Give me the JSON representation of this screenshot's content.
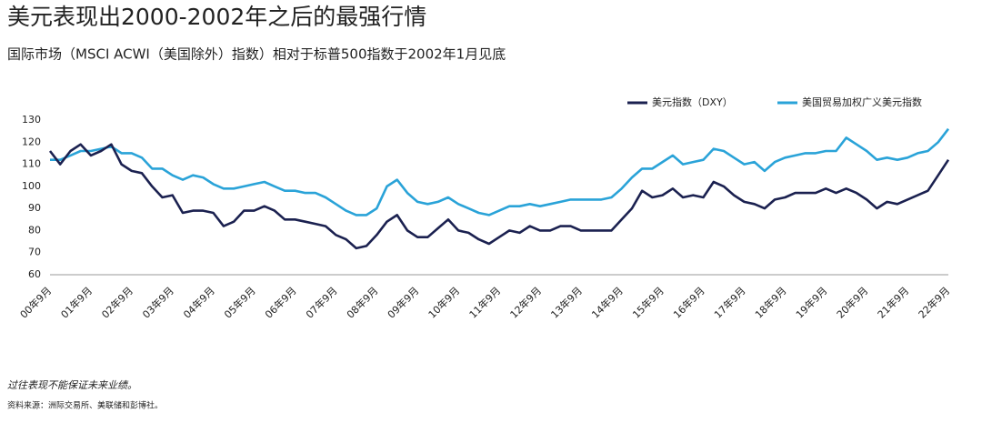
{
  "chart_data": {
    "type": "line",
    "title": "美元表现出2000-2002年之后的最强行情",
    "subtitle": "国际市场（MSCI ACWI（美国除外）指数）相对于标普500指数于2002年1月见底",
    "footnotes": [
      "过往表现不能保证未来业绩。",
      "资料来源：洲际交易所、美联储和彭博社。"
    ],
    "categories": [
      "00年9月",
      null,
      null,
      null,
      "01年9月",
      null,
      null,
      null,
      "02年9月",
      null,
      null,
      null,
      "03年9月",
      null,
      null,
      null,
      "04年9月",
      null,
      null,
      null,
      "05年9月",
      null,
      null,
      null,
      "06年9月",
      null,
      null,
      null,
      "07年9月",
      null,
      null,
      null,
      "08年9月",
      null,
      null,
      null,
      "09年9月",
      null,
      null,
      null,
      "10年9月",
      null,
      null,
      null,
      "11年9月",
      null,
      null,
      null,
      "12年9月",
      null,
      null,
      null,
      "13年9月",
      null,
      null,
      null,
      "14年9月",
      null,
      null,
      null,
      "15年9月",
      null,
      null,
      null,
      "16年9月",
      null,
      null,
      null,
      "17年9月",
      null,
      null,
      null,
      "18年9月",
      null,
      null,
      null,
      "19年9月",
      null,
      null,
      null,
      "20年9月",
      null,
      null,
      null,
      "21年9月",
      null,
      null,
      null,
      "22年9月"
    ],
    "series": [
      {
        "name": "美元指数（DXY）",
        "color": "#1b2150",
        "values": [
          116,
          110,
          116,
          119,
          114,
          116,
          119,
          110,
          107,
          106,
          100,
          95,
          96,
          88,
          89,
          89,
          88,
          82,
          84,
          89,
          89,
          91,
          89,
          85,
          85,
          84,
          83,
          82,
          78,
          76,
          72,
          73,
          78,
          84,
          87,
          80,
          77,
          77,
          81,
          85,
          80,
          79,
          76,
          74,
          77,
          80,
          79,
          82,
          80,
          80,
          82,
          82,
          80,
          80,
          80,
          80,
          85,
          90,
          98,
          95,
          96,
          99,
          95,
          96,
          95,
          102,
          100,
          96,
          93,
          92,
          90,
          94,
          95,
          97,
          97,
          97,
          99,
          97,
          99,
          97,
          94,
          90,
          93,
          92,
          94,
          96,
          98,
          105,
          112
        ]
      },
      {
        "name": "美国贸易加权广义美元指数",
        "color": "#2aa3d8",
        "values": [
          112,
          112,
          114,
          116,
          116,
          117,
          118,
          115,
          115,
          113,
          108,
          108,
          105,
          103,
          105,
          104,
          101,
          99,
          99,
          100,
          101,
          102,
          100,
          98,
          98,
          97,
          97,
          95,
          92,
          89,
          87,
          87,
          90,
          100,
          103,
          97,
          93,
          92,
          93,
          95,
          92,
          90,
          88,
          87,
          89,
          91,
          91,
          92,
          91,
          92,
          93,
          94,
          94,
          94,
          94,
          95,
          99,
          104,
          108,
          108,
          111,
          114,
          110,
          111,
          112,
          117,
          116,
          113,
          110,
          111,
          107,
          111,
          113,
          114,
          115,
          115,
          116,
          116,
          122,
          119,
          116,
          112,
          113,
          112,
          113,
          115,
          116,
          120,
          126
        ]
      }
    ],
    "ylim": [
      60,
      130
    ],
    "yticks": [
      60,
      70,
      80,
      90,
      100,
      110,
      120,
      130
    ],
    "grid": false
  }
}
